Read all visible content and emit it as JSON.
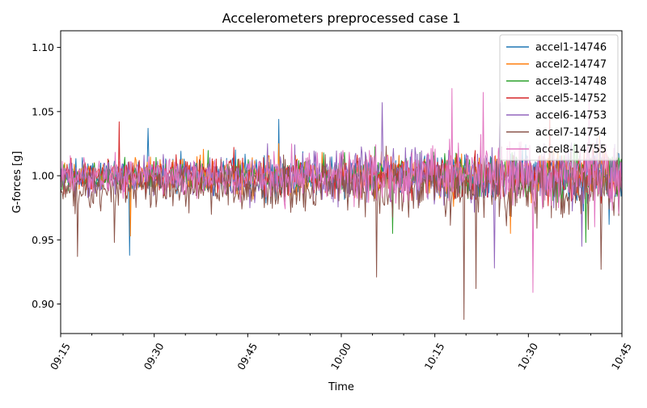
{
  "chart_data": {
    "type": "line",
    "title": "Accelerometers preprocessed case 1",
    "xlabel": "Time",
    "ylabel": "G-forces [g]",
    "x_ticks": [
      "09:15",
      "09:30",
      "09:45",
      "10:00",
      "10:15",
      "10:30",
      "10:45"
    ],
    "x_start": "09:15",
    "x_end": "10:45",
    "y_ticks": [
      0.9,
      0.95,
      1.0,
      1.05,
      1.1
    ],
    "ylim": [
      0.877,
      1.113
    ],
    "grid": false,
    "legend_position": "top-right",
    "series": [
      {
        "name": "accel1-14746",
        "color": "#1f77b4",
        "mean": 1.0,
        "amp_start": 0.018,
        "amp_end": 0.03,
        "spikes": [
          {
            "x": "09:26",
            "y": 0.938
          },
          {
            "x": "09:29",
            "y": 1.037
          },
          {
            "x": "09:50",
            "y": 1.044
          },
          {
            "x": "10:43",
            "y": 0.962
          }
        ]
      },
      {
        "name": "accel2-14747",
        "color": "#ff7f0e",
        "mean": 1.0,
        "amp_start": 0.018,
        "amp_end": 0.03,
        "spikes": [
          {
            "x": "09:26",
            "y": 1.034
          },
          {
            "x": "09:26",
            "y": 0.953
          },
          {
            "x": "10:27",
            "y": 0.955
          }
        ]
      },
      {
        "name": "accel3-14748",
        "color": "#2ca02c",
        "mean": 1.0,
        "amp_start": 0.016,
        "amp_end": 0.028,
        "spikes": [
          {
            "x": "10:08",
            "y": 0.955
          },
          {
            "x": "10:39",
            "y": 0.948
          }
        ]
      },
      {
        "name": "accel5-14752",
        "color": "#d62728",
        "mean": 1.0,
        "amp_start": 0.018,
        "amp_end": 0.03,
        "spikes": [
          {
            "x": "09:24",
            "y": 1.042
          },
          {
            "x": "10:33",
            "y": 1.047
          }
        ]
      },
      {
        "name": "accel6-14753",
        "color": "#9467bd",
        "mean": 1.0,
        "amp_start": 0.018,
        "amp_end": 0.04,
        "spikes": [
          {
            "x": "10:06",
            "y": 1.057
          },
          {
            "x": "10:25",
            "y": 1.057
          },
          {
            "x": "10:24",
            "y": 0.928
          },
          {
            "x": "10:38",
            "y": 0.945
          }
        ]
      },
      {
        "name": "accel7-14754",
        "color": "#8c564b",
        "mean": 0.99,
        "amp_start": 0.022,
        "amp_end": 0.04,
        "spikes": [
          {
            "x": "09:17",
            "y": 0.937
          },
          {
            "x": "09:23",
            "y": 0.948
          },
          {
            "x": "10:05",
            "y": 0.921
          },
          {
            "x": "10:19",
            "y": 0.888
          },
          {
            "x": "10:21",
            "y": 0.912
          },
          {
            "x": "10:41",
            "y": 0.927
          }
        ]
      },
      {
        "name": "accel8-14755",
        "color": "#e377c2",
        "mean": 1.0,
        "amp_start": 0.018,
        "amp_end": 0.04,
        "spikes": [
          {
            "x": "10:17",
            "y": 1.068
          },
          {
            "x": "10:22",
            "y": 1.065
          },
          {
            "x": "10:30",
            "y": 0.909
          },
          {
            "x": "10:39",
            "y": 1.062
          }
        ]
      }
    ]
  }
}
